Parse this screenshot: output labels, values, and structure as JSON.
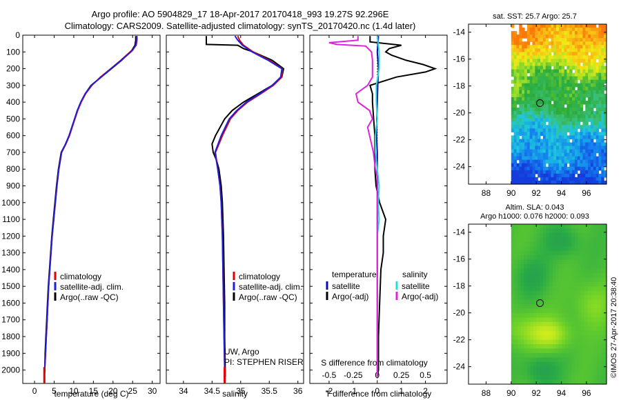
{
  "title_line1": "Argo profile: AO 5904829_17 18-Apr-2017 20170418_993 19.27S 92.296E",
  "title_line2": "Climatology: CARS2009. Satellite-adjusted climatology: synTS_20170420.nc (1.4d later)",
  "colors": {
    "climatology": "#e00000",
    "satellite": "#1f1fdd",
    "argo": "#000000",
    "temp_sat": "#0a0ab0",
    "sal_sat": "#28d8d8",
    "sal_argo": "#e020e0"
  },
  "chart_data": [
    {
      "id": "temperature",
      "type": "line",
      "xlabel": "temperature (deg C)",
      "ylabel": "",
      "xlim": [
        -3,
        32
      ],
      "ylim": [
        2080,
        0
      ],
      "xticks": [
        "0",
        "5",
        "10",
        "15",
        "20",
        "25",
        "30"
      ],
      "xtick_values": [
        0,
        5,
        10,
        15,
        20,
        25,
        30
      ],
      "yticks": [
        "0",
        "100",
        "200",
        "300",
        "400",
        "500",
        "600",
        "700",
        "800",
        "900",
        "1000",
        "1100",
        "1200",
        "1300",
        "1400",
        "1500",
        "1600",
        "1700",
        "1800",
        "1900",
        "2000"
      ],
      "ytick_values": [
        0,
        100,
        200,
        300,
        400,
        500,
        600,
        700,
        800,
        900,
        1000,
        1100,
        1200,
        1300,
        1400,
        1500,
        1600,
        1700,
        1800,
        1900,
        2000
      ],
      "legend": [
        "climatology",
        "satellite-adj. clim.",
        "Argo(..raw -QC)"
      ],
      "series": [
        {
          "name": "Argo(..raw -QC)",
          "color": "argo",
          "depth": [
            5,
            30,
            60,
            90,
            120,
            150,
            200,
            250,
            300,
            350,
            400,
            450,
            500,
            550,
            600,
            650,
            700,
            800,
            900,
            1000,
            1100,
            1200,
            1300,
            1400,
            1500,
            1600,
            1700,
            1800,
            1900,
            2000,
            2040
          ],
          "values": [
            25.8,
            25.8,
            25.6,
            24.8,
            23.5,
            22.2,
            19.6,
            17.0,
            14.4,
            12.9,
            11.8,
            10.9,
            10.2,
            9.5,
            8.8,
            7.9,
            6.8,
            6.1,
            5.6,
            5.2,
            4.8,
            4.4,
            4.1,
            3.8,
            3.5,
            3.3,
            3.1,
            2.9,
            2.7,
            2.6,
            2.5
          ]
        },
        {
          "name": "climatology",
          "color": "climatology",
          "depth": [
            5,
            30,
            60,
            90,
            120,
            150,
            200,
            250,
            300,
            350,
            400,
            450,
            500,
            550,
            600,
            650,
            700,
            800,
            900,
            1000,
            1100,
            1200,
            1300,
            1400,
            1500,
            1600,
            1700,
            1800,
            1900,
            2000,
            2040
          ],
          "values": [
            26.1,
            26.1,
            25.9,
            24.9,
            23.4,
            22.0,
            19.4,
            16.8,
            14.6,
            13.0,
            11.9,
            11.0,
            10.3,
            9.6,
            8.9,
            8.0,
            6.9,
            6.2,
            5.7,
            5.3,
            4.9,
            4.5,
            4.2,
            3.9,
            3.6,
            3.4,
            3.2,
            3.0,
            2.8,
            2.6,
            2.5
          ]
        },
        {
          "name": "satellite-adj. clim.",
          "color": "satellite",
          "depth": [
            5,
            30,
            60,
            90,
            120,
            150,
            200,
            250,
            300,
            350,
            400,
            450,
            500,
            550,
            600,
            650,
            700,
            800,
            900,
            1000,
            1100,
            1200,
            1300,
            1400,
            1500,
            1600,
            1700,
            1800,
            1900,
            2000,
            2040
          ],
          "values": [
            26.0,
            26.0,
            25.8,
            25.0,
            23.6,
            22.1,
            19.5,
            17.0,
            14.5,
            12.9,
            11.8,
            10.9,
            10.2,
            9.5,
            8.8,
            7.9,
            6.9,
            6.2,
            5.7,
            5.3,
            4.9,
            4.5,
            4.2,
            3.9,
            3.6,
            3.4,
            3.2,
            3.0,
            2.8,
            2.6,
            2.5
          ]
        }
      ]
    },
    {
      "id": "salinity",
      "type": "line",
      "xlabel": "salinity",
      "xlim": [
        33.7,
        36.1
      ],
      "ylim": [
        2080,
        0
      ],
      "xticks": [
        "34",
        "34.5",
        "35",
        "35.5",
        "36"
      ],
      "xtick_values": [
        34,
        34.5,
        35,
        35.5,
        36
      ],
      "legend": [
        "climatology",
        "satellite-adj. clim.",
        "Argo(..raw -QC)"
      ],
      "annotations": [
        "UW, Argo",
        "PI: STEPHEN RISER"
      ],
      "series": [
        {
          "name": "Argo(..raw -QC)",
          "color": "argo",
          "depth": [
            5,
            40,
            55,
            60,
            80,
            100,
            150,
            200,
            250,
            300,
            350,
            400,
            450,
            500,
            600,
            650,
            700,
            750,
            800,
            900,
            1000,
            1200,
            1400,
            1600,
            1800,
            2000,
            2040
          ],
          "values": [
            34.4,
            34.4,
            34.4,
            34.95,
            35.05,
            35.22,
            35.55,
            35.75,
            35.72,
            35.55,
            35.3,
            35.05,
            34.85,
            34.72,
            34.56,
            34.5,
            34.52,
            34.58,
            34.62,
            34.66,
            34.68,
            34.7,
            34.71,
            34.72,
            34.72,
            34.73,
            34.73
          ]
        },
        {
          "name": "climatology",
          "color": "climatology",
          "depth": [
            5,
            30,
            60,
            100,
            150,
            200,
            250,
            300,
            350,
            400,
            450,
            500,
            600,
            700,
            800,
            900,
            1000,
            1200,
            1400,
            1600,
            1800,
            2000,
            2040
          ],
          "values": [
            34.95,
            34.98,
            35.05,
            35.22,
            35.5,
            35.73,
            35.72,
            35.57,
            35.35,
            35.12,
            34.95,
            34.82,
            34.68,
            34.56,
            34.6,
            34.64,
            34.66,
            34.68,
            34.69,
            34.7,
            34.71,
            34.72,
            34.72
          ]
        },
        {
          "name": "satellite-adj. clim.",
          "color": "satellite",
          "depth": [
            5,
            30,
            60,
            100,
            150,
            200,
            250,
            300,
            350,
            400,
            450,
            500,
            600,
            700,
            800,
            900,
            1000,
            1200,
            1400,
            1600,
            1800,
            2000,
            2040
          ],
          "values": [
            34.9,
            34.95,
            35.03,
            35.2,
            35.48,
            35.72,
            35.7,
            35.55,
            35.33,
            35.1,
            34.93,
            34.8,
            34.66,
            34.55,
            34.6,
            34.64,
            34.66,
            34.68,
            34.69,
            34.7,
            34.71,
            34.72,
            34.72
          ]
        }
      ]
    },
    {
      "id": "difference",
      "type": "line",
      "xlabel": "T difference from climatology",
      "xlabel_top": "S difference from climatology",
      "xlim": [
        -2.8,
        2.9
      ],
      "ylim": [
        2080,
        0
      ],
      "xticks": [
        "-2",
        "-1",
        "0",
        "1",
        "2"
      ],
      "xtick_values": [
        -2,
        -1,
        0,
        1,
        2
      ],
      "xticks_top": [
        "-0.5",
        "-0.25",
        "0",
        "0.25",
        "0.5"
      ],
      "xtick_top_values": [
        -0.5,
        -0.25,
        0,
        0.25,
        0.5
      ],
      "legend_headers": [
        "temperature",
        "salinity"
      ],
      "legend": [
        "satellite",
        "Argo(-adj)",
        "satellite",
        "Argo(-adj)"
      ],
      "series": [
        {
          "name": "temperature satellite",
          "color": "temp_sat",
          "depth": [
            5,
            100,
            200,
            300,
            400,
            500,
            600,
            700,
            800,
            900,
            1000,
            1200,
            1400,
            1600,
            1800,
            2000,
            2040
          ],
          "values": [
            0.05,
            0.0,
            0.05,
            0.02,
            0.0,
            -0.02,
            -0.03,
            0.0,
            0.0,
            0.0,
            0.0,
            0.0,
            0.0,
            0.0,
            0.0,
            0.0,
            0.0
          ]
        },
        {
          "name": "temperature Argo(-adj)",
          "color": "argo",
          "depth": [
            5,
            40,
            60,
            80,
            100,
            120,
            150,
            175,
            200,
            220,
            250,
            300,
            350,
            400,
            500,
            600,
            700,
            800,
            900,
            1000,
            1100,
            1200,
            1300,
            1400,
            1600,
            1800,
            2000,
            2040
          ],
          "values": [
            -0.3,
            -0.3,
            1.0,
            0.5,
            0.35,
            0.6,
            1.2,
            1.9,
            2.4,
            2.0,
            0.8,
            -0.3,
            -0.2,
            -0.2,
            -0.15,
            -0.1,
            -0.1,
            -0.1,
            -0.05,
            0.1,
            0.35,
            0.25,
            0.25,
            0.15,
            0.1,
            0.05,
            0.05,
            0.0
          ]
        },
        {
          "name": "salinity satellite",
          "color": "sal_sat",
          "depth": [
            5,
            100,
            200,
            300,
            400,
            500,
            600,
            700,
            800,
            900,
            1000,
            1100,
            1200,
            1400,
            1600,
            1800,
            2000,
            2040
          ],
          "values": [
            0.0,
            0.02,
            0.02,
            -0.01,
            -0.01,
            0.0,
            -0.02,
            -0.02,
            0.0,
            0.02,
            0.01,
            0.02,
            0.0,
            0.0,
            0.0,
            0.0,
            0.0,
            0.0
          ]
        },
        {
          "name": "salinity Argo(-adj)",
          "color": "sal_argo",
          "depth": [
            5,
            30,
            45,
            55,
            65,
            100,
            150,
            200,
            250,
            300,
            350,
            400,
            450,
            500,
            550,
            600,
            650,
            700,
            750,
            800,
            850,
            900,
            1000,
            1200,
            1400,
            1600,
            1800,
            2000,
            2040
          ],
          "values": [
            -0.2,
            -0.2,
            -0.5,
            -0.42,
            -0.12,
            -0.06,
            -0.05,
            -0.05,
            -0.05,
            -0.1,
            -0.22,
            -0.2,
            -0.08,
            -0.05,
            -0.1,
            -0.08,
            -0.06,
            -0.04,
            -0.03,
            -0.02,
            0.0,
            0.0,
            0.0,
            0.0,
            0.0,
            0.0,
            0.0,
            0.0,
            0.0
          ]
        }
      ]
    },
    {
      "id": "sst_map",
      "type": "heatmap",
      "title": "sat. SST: 25.7 Argo: 25.7",
      "xlim": [
        86.6,
        97.6
      ],
      "ylim": [
        -25.3,
        -13.4
      ],
      "xticks": [
        "88",
        "90",
        "92",
        "94",
        "96"
      ],
      "xtick_values": [
        88,
        90,
        92,
        94,
        96
      ],
      "yticks": [
        "-14",
        "-16",
        "-18",
        "-20",
        "-22",
        "-24"
      ],
      "ytick_values": [
        -14,
        -16,
        -18,
        -20,
        -22,
        -24
      ],
      "data_lon_min": 90,
      "marker": {
        "lon": 92.296,
        "lat": -19.27
      }
    },
    {
      "id": "sla_map",
      "type": "heatmap",
      "title_line1": "Altim. SLA: 0.043",
      "title_line2": "Argo h1000: 0.076 h2000: 0.093",
      "xlim": [
        86.6,
        97.6
      ],
      "ylim": [
        -25.3,
        -13.4
      ],
      "xticks": [
        "88",
        "90",
        "92",
        "94",
        "96"
      ],
      "xtick_values": [
        88,
        90,
        92,
        94,
        96
      ],
      "yticks": [
        "-14",
        "-16",
        "-18",
        "-20",
        "-22",
        "-24"
      ],
      "ytick_values": [
        -14,
        -16,
        -18,
        -20,
        -22,
        -24
      ],
      "data_lon_min": 90,
      "marker": {
        "lon": 92.296,
        "lat": -19.27
      }
    }
  ],
  "credit": "©IMOS 27-Apr-2017 20:38:40"
}
